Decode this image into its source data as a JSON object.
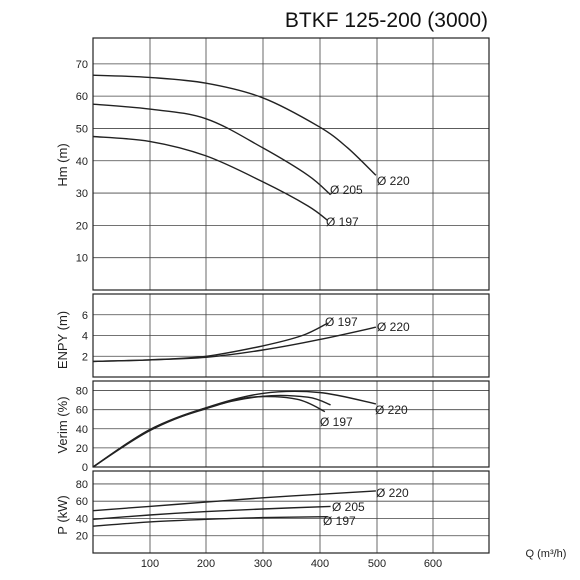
{
  "title": "BTKF 125-200 (3000)",
  "colors": {
    "curve": "#222222",
    "grid": "#444444",
    "background": "#ffffff"
  },
  "chart_data": [
    {
      "type": "line",
      "id": "head",
      "ylabel": "Hm (m)",
      "ylim": [
        0,
        78
      ],
      "yticks": [
        10,
        20,
        30,
        40,
        50,
        60,
        70
      ],
      "xlim": [
        0,
        700
      ],
      "grid": true,
      "series": [
        {
          "name": "Ø 220",
          "x": [
            0,
            100,
            200,
            300,
            400,
            450,
            500
          ],
          "y": [
            66.5,
            65.8,
            64.0,
            59.5,
            50.5,
            44.0,
            35.5
          ]
        },
        {
          "name": "Ø 205",
          "x": [
            0,
            100,
            200,
            300,
            380,
            420
          ],
          "y": [
            57.5,
            56.0,
            53.0,
            44.0,
            35.5,
            29.5
          ]
        },
        {
          "name": "Ø 197",
          "x": [
            0,
            100,
            200,
            300,
            380,
            415
          ],
          "y": [
            47.5,
            46.0,
            41.5,
            33.5,
            26.0,
            21.5
          ]
        }
      ]
    },
    {
      "type": "line",
      "id": "npsh",
      "ylabel": "ENPY (m)",
      "ylim": [
        0,
        8
      ],
      "yticks": [
        2,
        4,
        6
      ],
      "xlim": [
        0,
        700
      ],
      "grid": true,
      "series": [
        {
          "name": "Ø 197",
          "x": [
            0,
            100,
            200,
            300,
            370,
            415
          ],
          "y": [
            1.5,
            1.65,
            2.0,
            3.0,
            4.0,
            5.2
          ]
        },
        {
          "name": "Ø 220",
          "x": [
            0,
            100,
            200,
            300,
            400,
            500
          ],
          "y": [
            1.5,
            1.65,
            1.9,
            2.6,
            3.6,
            4.8
          ]
        }
      ]
    },
    {
      "type": "line",
      "id": "efficiency",
      "ylabel": "Verim (%)",
      "ylim": [
        0,
        90
      ],
      "yticks": [
        0,
        20,
        40,
        60,
        80
      ],
      "xlim": [
        0,
        700
      ],
      "grid": true,
      "series": [
        {
          "name": "Ø 220",
          "x": [
            0,
            100,
            200,
            300,
            400,
            500
          ],
          "y": [
            0,
            38,
            62,
            77,
            78,
            66
          ]
        },
        {
          "name": "Ø 205",
          "x": [
            0,
            100,
            200,
            300,
            380,
            420
          ],
          "y": [
            0,
            39,
            62,
            74,
            73,
            65
          ]
        },
        {
          "name": "Ø 197",
          "x": [
            0,
            100,
            200,
            280,
            360,
            410
          ],
          "y": [
            0,
            39,
            61,
            73,
            71,
            58
          ]
        }
      ]
    },
    {
      "type": "line",
      "id": "power",
      "ylabel": "P (kW)",
      "ylim": [
        0,
        95
      ],
      "yticks": [
        20,
        40,
        60,
        80
      ],
      "xlim": [
        0,
        700
      ],
      "xticks": [
        100,
        200,
        300,
        400,
        500,
        600
      ],
      "xlabel": "Q (m³/h)",
      "grid": true,
      "series": [
        {
          "name": "Ø 220",
          "x": [
            0,
            100,
            200,
            300,
            400,
            500
          ],
          "y": [
            49,
            54,
            59,
            64,
            68,
            72
          ]
        },
        {
          "name": "Ø 205",
          "x": [
            0,
            100,
            200,
            300,
            420
          ],
          "y": [
            39,
            44,
            48,
            51,
            54
          ]
        },
        {
          "name": "Ø 197",
          "x": [
            0,
            100,
            200,
            300,
            415
          ],
          "y": [
            31,
            36,
            39,
            41,
            42
          ]
        }
      ]
    }
  ],
  "curve_labels": {
    "head": [
      "Ø 220",
      "Ø 205",
      "Ø 197"
    ],
    "npsh": [
      "Ø 197",
      "Ø 220"
    ],
    "efficiency": [
      "Ø 220",
      "Ø 197"
    ],
    "power": [
      "Ø 220",
      "Ø 205",
      "Ø 197"
    ]
  }
}
